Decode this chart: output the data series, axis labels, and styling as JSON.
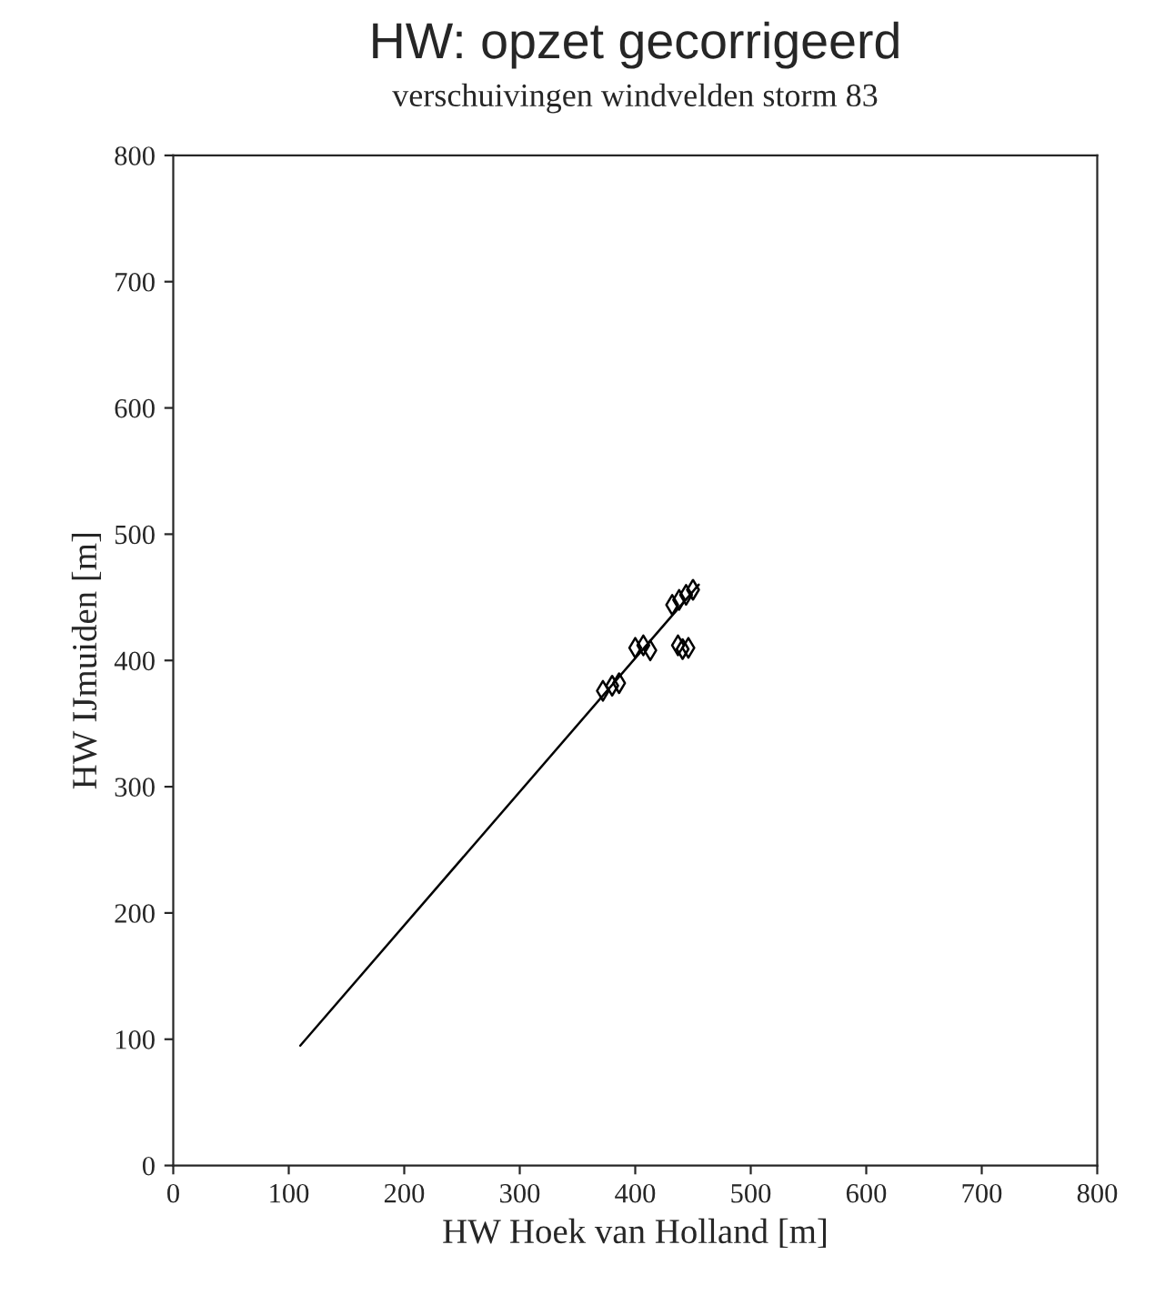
{
  "chart_data": {
    "type": "scatter",
    "title": "HW: opzet gecorrigeerd",
    "subtitle": "verschuivingen windvelden storm 83",
    "xlabel": "HW Hoek van Holland [m]",
    "ylabel": "HW IJmuiden [m]",
    "series": [
      {
        "color": "#000000",
        "marker": "diamond",
        "x": [
          372,
          380,
          386,
          400,
          407,
          413,
          437,
          441,
          446,
          432,
          438,
          444,
          450
        ],
        "values": [
          376,
          380,
          382,
          410,
          412,
          408,
          412,
          409,
          410,
          444,
          448,
          452,
          456
        ]
      },
      {
        "type": "line",
        "color": "#000000",
        "marker": "none",
        "x": [
          110,
          455
        ],
        "values": [
          95,
          460
        ]
      }
    ],
    "xlim": [
      0,
      800
    ],
    "ylim": [
      0,
      800
    ],
    "xticks": [
      0,
      100,
      200,
      300,
      400,
      500,
      600,
      700,
      800
    ],
    "yticks": [
      0,
      100,
      200,
      300,
      400,
      500,
      600,
      700,
      800
    ],
    "grid": false
  }
}
